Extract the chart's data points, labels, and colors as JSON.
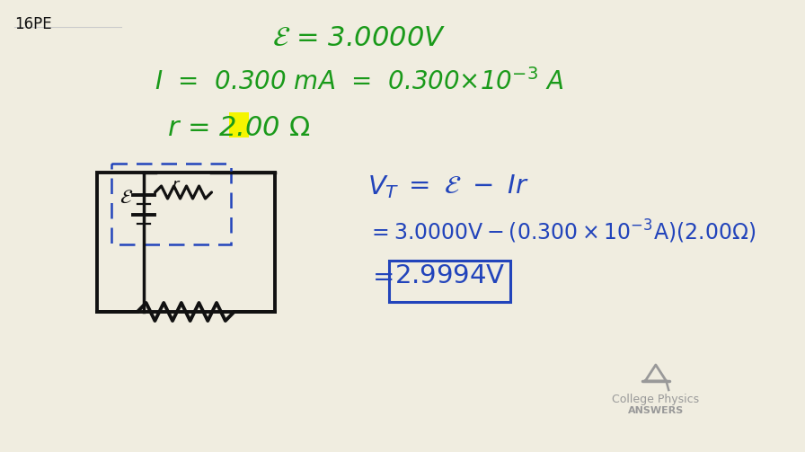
{
  "bg": "#f0ede0",
  "green": "#1a9a1a",
  "blue": "#2244bb",
  "black": "#111111",
  "gray": "#999999",
  "yellow": "#f5f500",
  "label": "16PE",
  "logo1": "College Physics",
  "logo2": "ANSWERS"
}
